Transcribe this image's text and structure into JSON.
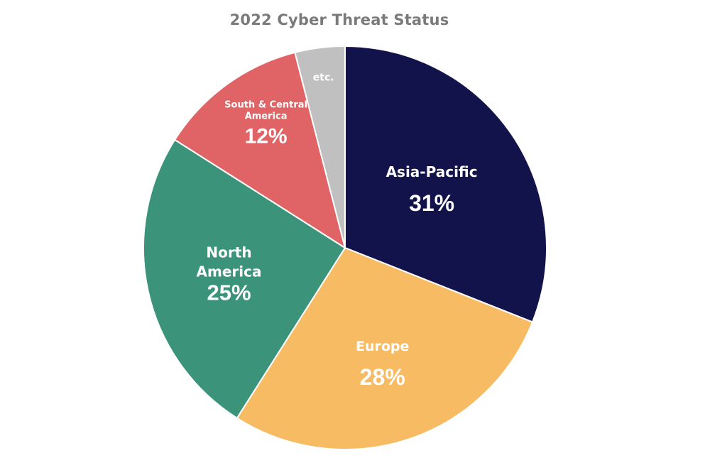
{
  "chart_data": {
    "type": "pie",
    "title": "2022 Cyber Threat Status",
    "start_angle_deg": 0,
    "direction": "clockwise",
    "slices": [
      {
        "label": [
          "Asia-Pacific"
        ],
        "value": 31,
        "value_label": "31%",
        "color": "#13134b"
      },
      {
        "label": [
          "Europe"
        ],
        "value": 28,
        "value_label": "28%",
        "color": "#f7bb63"
      },
      {
        "label": [
          "North",
          "America"
        ],
        "value": 25,
        "value_label": "25%",
        "color": "#3b9479"
      },
      {
        "label": [
          "South & Central",
          "America"
        ],
        "value": 12,
        "value_label": "12%",
        "color": "#e06466"
      },
      {
        "label": [
          "etc."
        ],
        "value": 4,
        "value_label": "",
        "color": "#c0c0c0"
      }
    ]
  }
}
